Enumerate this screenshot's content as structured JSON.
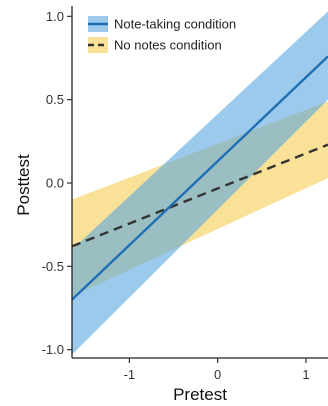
{
  "chart_data": {
    "type": "line",
    "title": "",
    "xlabel": "Pretest",
    "ylabel": "Posttest",
    "xlim": [
      -1.65,
      1.25
    ],
    "ylim": [
      -1.05,
      1.05
    ],
    "x_ticks": [
      -1,
      0,
      1
    ],
    "x_tick_labels": [
      "-1",
      "0",
      "1"
    ],
    "y_ticks": [
      1.0,
      0.5,
      0.0,
      -0.5,
      -1.0
    ],
    "y_tick_labels": [
      "1.0",
      "0.5",
      "0.0",
      "-0.5",
      "-1.0"
    ],
    "grid": false,
    "legend_position": "top-left",
    "series": [
      {
        "name": "Note-taking condition",
        "line_style": "solid",
        "line_color": "#1f6fb4",
        "band_color": "#5aa7e0",
        "x": [
          -1.65,
          1.25
        ],
        "y": [
          -0.7,
          0.76
        ],
        "ci_lower": [
          -1.03,
          0.5
        ],
        "ci_upper": [
          -0.4,
          1.03
        ]
      },
      {
        "name": "No notes condition",
        "line_style": "dashed",
        "line_color": "#333333",
        "band_color": "#f7d774",
        "x": [
          -1.65,
          1.25
        ],
        "y": [
          -0.38,
          0.23
        ],
        "ci_lower": [
          -0.68,
          0.03
        ],
        "ci_upper": [
          -0.1,
          0.49
        ]
      }
    ]
  }
}
